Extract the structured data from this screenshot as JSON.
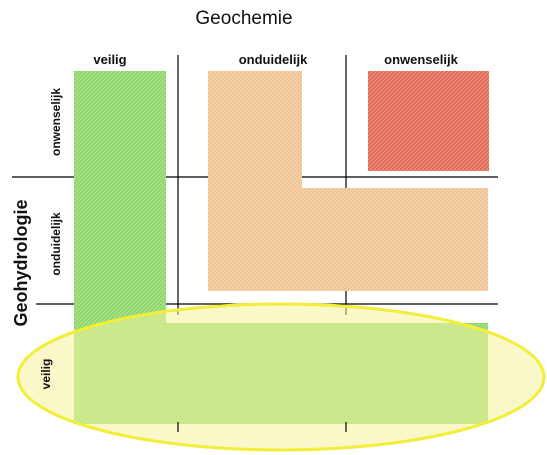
{
  "title": "Geochemie",
  "y_axis_label": "Geohydrologie",
  "columns": [
    "veilig",
    "onduidelijk",
    "onwenselijk"
  ],
  "rows": [
    "onwenselijk",
    "onduidelijk",
    "veilig"
  ],
  "colors": {
    "veilig": "#8ed86b",
    "onduidelijk": "#f0c494",
    "onwenselijk": "#e36a55",
    "highlight_fill": "#f5f39a",
    "highlight_stroke": "#f2ee3a"
  },
  "regions": [
    {
      "category": "veilig",
      "cells": "veilig column and veilig row"
    },
    {
      "category": "onduidelijk",
      "cells": "onduidelijk column and onduidelijk row, excluding veilig"
    },
    {
      "category": "onwenselijk",
      "cells": "onwenselijk column and onwenselijk row"
    }
  ]
}
